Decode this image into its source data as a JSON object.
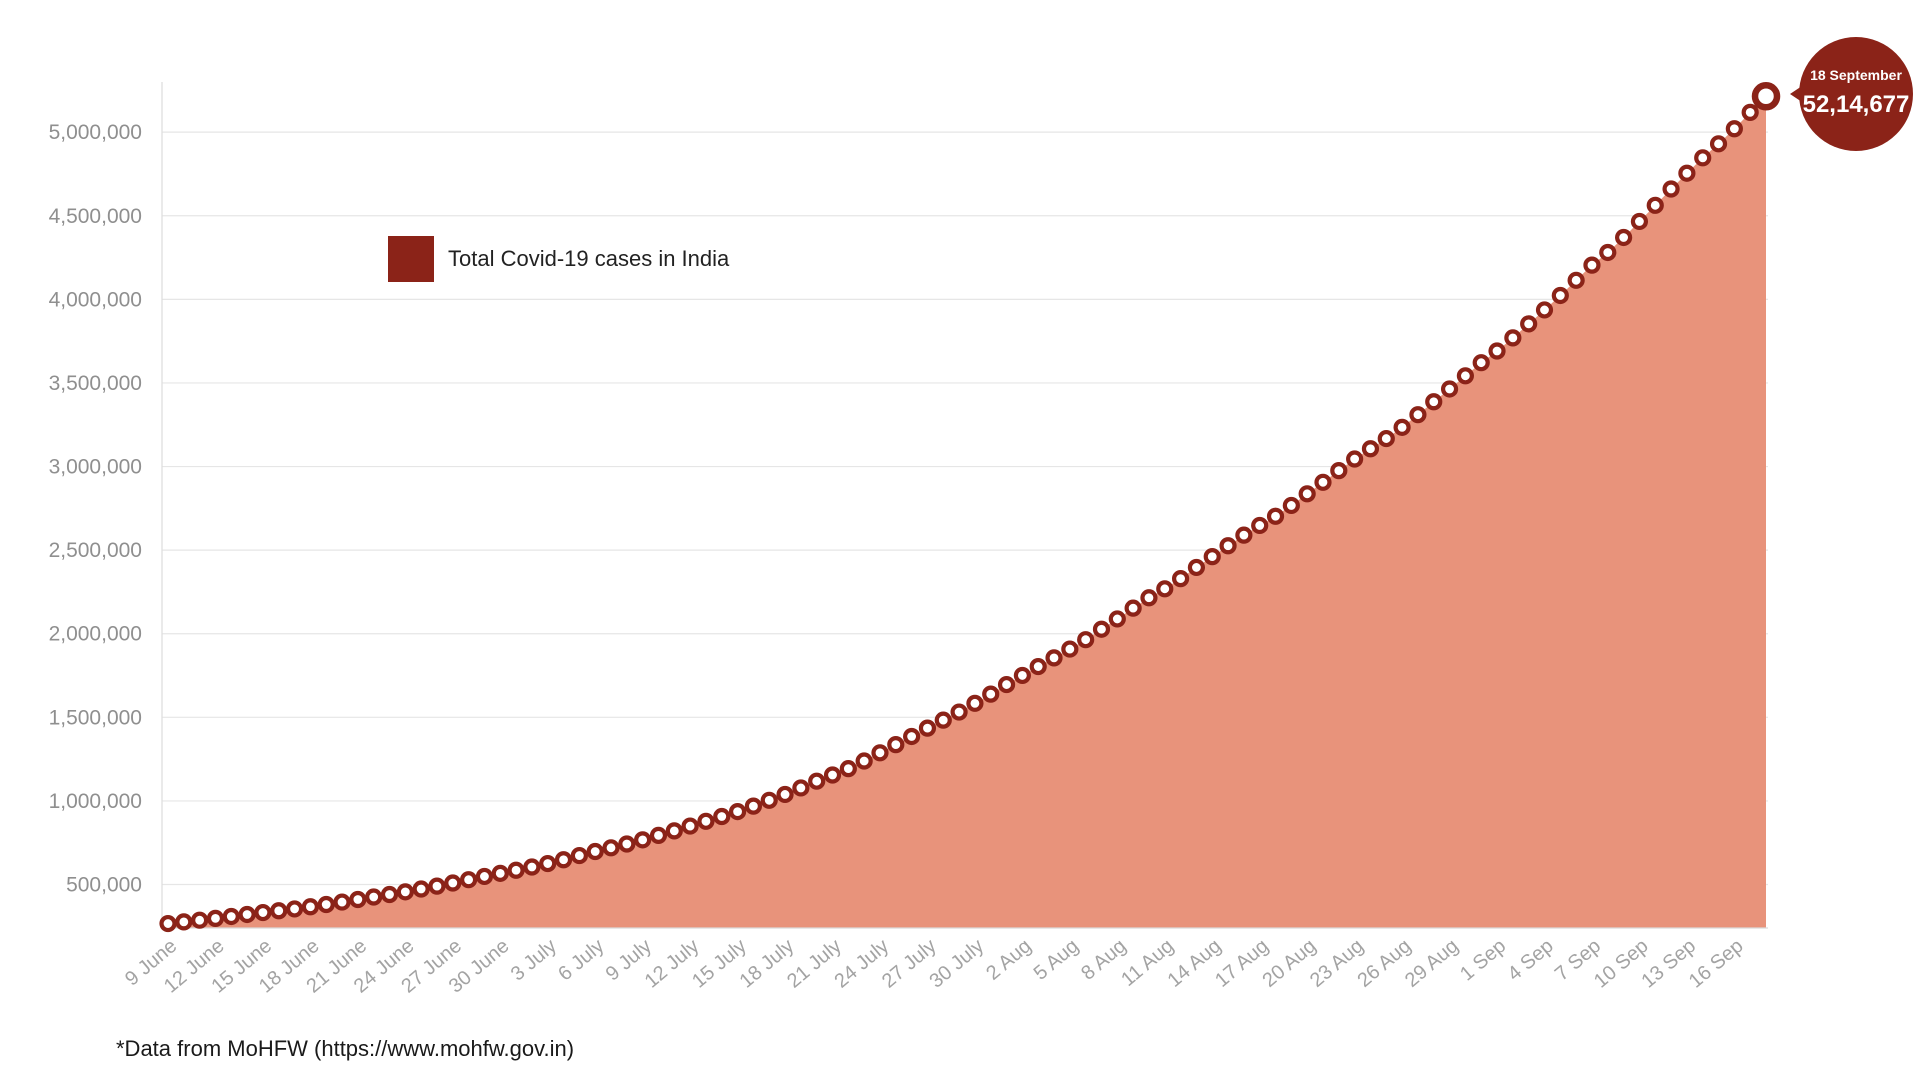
{
  "chart_data": {
    "type": "area",
    "x_start": "2020-06-09",
    "x_end": "2020-09-18",
    "x": [
      "9 June",
      "10 June",
      "11 June",
      "12 June",
      "13 June",
      "14 June",
      "15 June",
      "16 June",
      "17 June",
      "18 June",
      "19 June",
      "20 June",
      "21 June",
      "22 June",
      "23 June",
      "24 June",
      "25 June",
      "26 June",
      "27 June",
      "28 June",
      "29 June",
      "30 June",
      "1 July",
      "2 July",
      "3 July",
      "4 July",
      "5 July",
      "6 July",
      "7 July",
      "8 July",
      "9 July",
      "10 July",
      "11 July",
      "12 July",
      "13 July",
      "14 July",
      "15 July",
      "16 July",
      "17 July",
      "18 July",
      "19 July",
      "20 July",
      "21 July",
      "22 July",
      "23 July",
      "24 July",
      "25 July",
      "26 July",
      "27 July",
      "28 July",
      "29 July",
      "30 July",
      "31 July",
      "1 Aug",
      "2 Aug",
      "3 Aug",
      "4 Aug",
      "5 Aug",
      "6 Aug",
      "7 Aug",
      "8 Aug",
      "9 Aug",
      "10 Aug",
      "11 Aug",
      "12 Aug",
      "13 Aug",
      "14 Aug",
      "15 Aug",
      "16 Aug",
      "17 Aug",
      "18 Aug",
      "19 Aug",
      "20 Aug",
      "21 Aug",
      "22 Aug",
      "23 Aug",
      "24 Aug",
      "25 Aug",
      "26 Aug",
      "27 Aug",
      "28 Aug",
      "29 Aug",
      "30 Aug",
      "31 Aug",
      "1 Sep",
      "2 Sep",
      "3 Sep",
      "4 Sep",
      "5 Sep",
      "6 Sep",
      "7 Sep",
      "8 Sep",
      "9 Sep",
      "10 Sep",
      "11 Sep",
      "12 Sep",
      "13 Sep",
      "14 Sep",
      "15 Sep",
      "16 Sep",
      "17 Sep",
      "18 Sep"
    ],
    "values": [
      266598,
      276583,
      286579,
      297535,
      308993,
      320922,
      332424,
      343091,
      354065,
      366946,
      380532,
      395048,
      410461,
      425282,
      440215,
      456183,
      473105,
      490401,
      508953,
      528859,
      548318,
      566840,
      585493,
      604641,
      625544,
      648315,
      673165,
      697413,
      719665,
      742417,
      767296,
      793802,
      820916,
      849553,
      878254,
      906752,
      936181,
      968876,
      1003832,
      1038716,
      1077618,
      1118043,
      1155191,
      1193078,
      1238635,
      1287945,
      1336861,
      1385522,
      1435453,
      1483156,
      1531669,
      1583792,
      1638870,
      1695988,
      1750723,
      1803695,
      1855745,
      1908254,
      1964536,
      2027074,
      2088611,
      2153010,
      2215074,
      2268675,
      2329638,
      2396637,
      2461190,
      2526192,
      2589682,
      2647663,
      2702742,
      2767273,
      2836925,
      2905823,
      2975701,
      3044940,
      3106348,
      3167323,
      3234474,
      3310234,
      3387500,
      3463972,
      3542733,
      3621245,
      3691166,
      3769523,
      3853406,
      3936747,
      4023179,
      4113811,
      4204613,
      4280422,
      4370128,
      4465863,
      4562414,
      4659984,
      4754356,
      4846427,
      4930236,
      5020359,
      5118253,
      5214677
    ],
    "x_tick_labels": [
      "9 June",
      "12 June",
      "15 June",
      "18 June",
      "21 June",
      "24 June",
      "27 June",
      "30 June",
      "3 July",
      "6 July",
      "9 July",
      "12 July",
      "15 July",
      "18 July",
      "21 July",
      "24 July",
      "27 July",
      "30 July",
      "2 Aug",
      "5 Aug",
      "8 Aug",
      "11 Aug",
      "14 Aug",
      "17 Aug",
      "20 Aug",
      "23 Aug",
      "26 Aug",
      "29 Aug",
      "1 Sep",
      "4 Sep",
      "7 Sep",
      "10 Sep",
      "13 Sep",
      "16 Sep"
    ],
    "y_ticks": [
      500000,
      1000000,
      1500000,
      2000000,
      2500000,
      3000000,
      3500000,
      4000000,
      4500000,
      5000000
    ],
    "y_tick_labels": [
      "500,000",
      "1,000,000",
      "1,500,000",
      "2,000,000",
      "2,500,000",
      "3,000,000",
      "3,500,000",
      "4,000,000",
      "4,500,000",
      "5,000,000"
    ],
    "ylim": [
      240000,
      5300000
    ],
    "grid": true,
    "legend": {
      "position": "top-left",
      "label": "Total Covid-19 cases in India"
    },
    "series": [
      {
        "name": "Total Covid-19 cases in India",
        "color": "#8b2318",
        "fill": "#e8937b"
      }
    ],
    "annotation": {
      "date": "18 September",
      "value": "52,14,677"
    }
  },
  "footnote": "*Data from MoHFW (https://www.mohfw.gov.in)",
  "colors": {
    "area": "#e8937b",
    "marker": "#8b2318",
    "grid": "#e6e6e6",
    "tick": "#8f8f8f"
  }
}
